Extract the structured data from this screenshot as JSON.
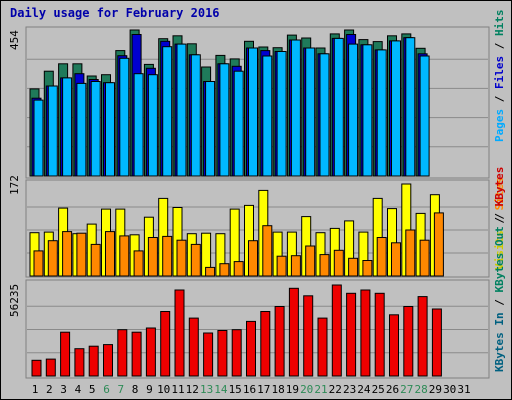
{
  "title": "Daily usage for February 2016",
  "panels": {
    "top": {
      "max_label": "454",
      "legend": [
        {
          "text": "Pages",
          "color": "#00aaff"
        },
        {
          "text": " / ",
          "color": "#000000"
        },
        {
          "text": "Files",
          "color": "#0000cc"
        },
        {
          "text": " / ",
          "color": "#000000"
        },
        {
          "text": "Hits",
          "color": "#008060"
        }
      ]
    },
    "mid": {
      "max_label": "172",
      "legend": [
        {
          "text": "Visits",
          "color": "#cccc00"
        },
        {
          "text": " / ",
          "color": "#000000"
        },
        {
          "text": "Sites",
          "color": "#ff8800"
        }
      ]
    },
    "bot": {
      "max_label": "56235",
      "legend": [
        {
          "text": "KBytes In",
          "color": "#006080"
        },
        {
          "text": " / ",
          "color": "#000000"
        },
        {
          "text": "KBytes Out",
          "color": "#008060"
        },
        {
          "text": " / ",
          "color": "#000000"
        },
        {
          "text": "KBytes",
          "color": "#cc0000"
        }
      ]
    }
  },
  "colors": {
    "hits": "#1f7a5a",
    "files": "#0000d0",
    "pages": "#00b8ff",
    "visits": "#ffff00",
    "sites": "#ff8800",
    "kbytes": "#ee0000",
    "weekend_label": "#2e8b57",
    "weekday_label": "#000000"
  },
  "chart_data": [
    {
      "type": "bar",
      "title": "Daily usage for February 2016",
      "categories": [
        "1",
        "2",
        "3",
        "4",
        "5",
        "6",
        "7",
        "8",
        "9",
        "10",
        "11",
        "12",
        "13",
        "14",
        "15",
        "16",
        "17",
        "18",
        "19",
        "20",
        "21",
        "22",
        "23",
        "24",
        "25",
        "26",
        "27",
        "28",
        "29",
        "30",
        "31"
      ],
      "weekend_days": [
        "6",
        "7",
        "13",
        "14",
        "20",
        "21",
        "27",
        "28"
      ],
      "ylim": [
        0,
        454
      ],
      "series": [
        {
          "name": "Hits",
          "values": [
            271,
            326,
            349,
            349,
            311,
            315,
            390,
            454,
            347,
            427,
            436,
            411,
            339,
            375,
            364,
            419,
            401,
            399,
            438,
            429,
            398,
            442,
            454,
            424,
            418,
            436,
            442,
            397,
            null,
            null,
            null
          ]
        },
        {
          "name": "Files",
          "values": [
            242,
            280,
            305,
            318,
            300,
            290,
            374,
            440,
            335,
            419,
            410,
            377,
            294,
            349,
            341,
            398,
            390,
            387,
            423,
            398,
            380,
            428,
            440,
            408,
            392,
            420,
            430,
            380,
            null,
            null,
            null
          ]
        },
        {
          "name": "Pages",
          "values": [
            236,
            280,
            305,
            288,
            294,
            290,
            366,
            318,
            315,
            402,
            410,
            377,
            294,
            349,
            326,
            398,
            373,
            387,
            423,
            398,
            380,
            428,
            410,
            408,
            392,
            420,
            430,
            373,
            null,
            null,
            null
          ]
        }
      ]
    },
    {
      "type": "bar",
      "categories": [
        "1",
        "2",
        "3",
        "4",
        "5",
        "6",
        "7",
        "8",
        "9",
        "10",
        "11",
        "12",
        "13",
        "14",
        "15",
        "16",
        "17",
        "18",
        "19",
        "20",
        "21",
        "22",
        "23",
        "24",
        "25",
        "26",
        "27",
        "28",
        "29",
        "30",
        "31"
      ],
      "ylim": [
        0,
        172
      ],
      "series": [
        {
          "name": "Visits",
          "values": [
            81,
            82,
            127,
            79,
            97,
            125,
            125,
            77,
            110,
            145,
            128,
            79,
            80,
            79,
            125,
            132,
            160,
            82,
            82,
            111,
            81,
            89,
            103,
            82,
            145,
            126,
            172,
            117,
            152,
            null,
            null
          ]
        },
        {
          "name": "Sites",
          "values": [
            47,
            66,
            83,
            80,
            59,
            83,
            75,
            47,
            72,
            74,
            67,
            59,
            16,
            23,
            27,
            66,
            94,
            37,
            38,
            56,
            40,
            48,
            33,
            29,
            72,
            62,
            86,
            67,
            118,
            null,
            null
          ]
        }
      ]
    },
    {
      "type": "bar",
      "categories": [
        "1",
        "2",
        "3",
        "4",
        "5",
        "6",
        "7",
        "8",
        "9",
        "10",
        "11",
        "12",
        "13",
        "14",
        "15",
        "16",
        "17",
        "18",
        "19",
        "20",
        "21",
        "22",
        "23",
        "24",
        "25",
        "26",
        "27",
        "28",
        "29",
        "30",
        "31"
      ],
      "ylim": [
        0,
        56235
      ],
      "series": [
        {
          "name": "KBytes",
          "values": [
            9500,
            10200,
            26500,
            16500,
            18000,
            19000,
            28000,
            26500,
            29000,
            39000,
            52000,
            35000,
            26000,
            27500,
            28000,
            33000,
            39000,
            42000,
            53000,
            48500,
            35000,
            55000,
            50000,
            52000,
            50000,
            37000,
            42000,
            48000,
            40500,
            null,
            null
          ]
        }
      ]
    }
  ]
}
